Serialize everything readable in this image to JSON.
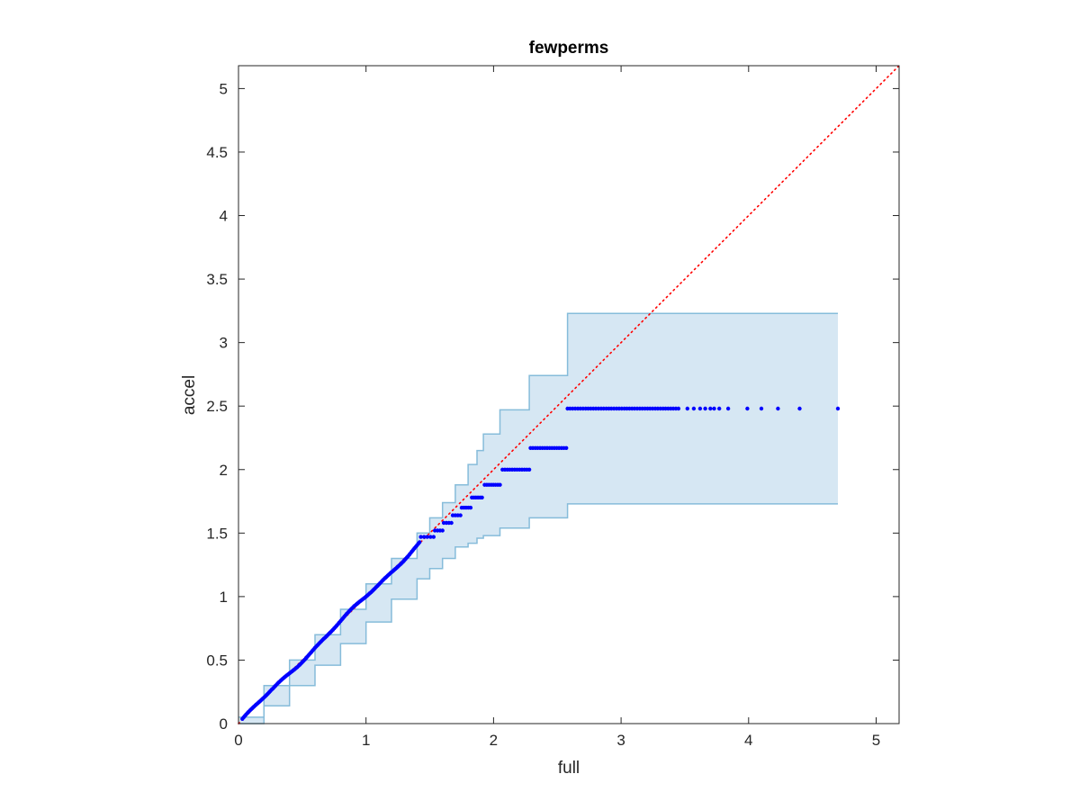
{
  "chart_data": {
    "type": "scatter",
    "title": "fewperms",
    "xlabel": "full",
    "ylabel": "accel",
    "xlim": [
      0,
      5.18
    ],
    "ylim": [
      0,
      5.18
    ],
    "xticks": [
      "0",
      "1",
      "2",
      "3",
      "4",
      "5"
    ],
    "yticks": [
      "0",
      "0.5",
      "1",
      "1.5",
      "2",
      "2.5",
      "3",
      "3.5",
      "4",
      "4.5",
      "5"
    ],
    "grid": false,
    "colors": {
      "points": "#0000ff",
      "band_fill": "#d6e7f3",
      "band_edge": "#86bcda",
      "reference": "#ff0000",
      "axes": "#262626"
    },
    "reference_line": {
      "style": "dotted",
      "from": [
        0,
        0
      ],
      "to": [
        5.18,
        5.18
      ]
    },
    "confidence_band": {
      "x": [
        0.0,
        0.2,
        0.4,
        0.6,
        0.8,
        1.0,
        1.2,
        1.4,
        1.5,
        1.6,
        1.7,
        1.8,
        1.87,
        1.92,
        2.05,
        2.28,
        2.58,
        4.7
      ],
      "upper": [
        0.05,
        0.3,
        0.5,
        0.7,
        0.9,
        1.1,
        1.3,
        1.5,
        1.62,
        1.74,
        1.88,
        2.04,
        2.15,
        2.28,
        2.47,
        2.74,
        3.23,
        3.23
      ],
      "lower": [
        0.0,
        0.14,
        0.3,
        0.46,
        0.63,
        0.8,
        0.98,
        1.14,
        1.22,
        1.3,
        1.39,
        1.42,
        1.46,
        1.48,
        1.54,
        1.62,
        1.73,
        1.73
      ]
    },
    "points": {
      "diagonal_range": [
        0.03,
        1.42
      ],
      "diagonal_count": 140,
      "steps": [
        {
          "y": 1.47,
          "x_from": 1.43,
          "x_to": 1.53,
          "count": 5
        },
        {
          "y": 1.52,
          "x_from": 1.54,
          "x_to": 1.6,
          "count": 4
        },
        {
          "y": 1.58,
          "x_from": 1.61,
          "x_to": 1.67,
          "count": 4
        },
        {
          "y": 1.64,
          "x_from": 1.68,
          "x_to": 1.74,
          "count": 4
        },
        {
          "y": 1.7,
          "x_from": 1.75,
          "x_to": 1.82,
          "count": 5
        },
        {
          "y": 1.78,
          "x_from": 1.83,
          "x_to": 1.91,
          "count": 6
        },
        {
          "y": 1.88,
          "x_from": 1.93,
          "x_to": 2.05,
          "count": 8
        },
        {
          "y": 2.0,
          "x_from": 2.07,
          "x_to": 2.28,
          "count": 12
        },
        {
          "y": 2.17,
          "x_from": 2.29,
          "x_to": 2.57,
          "count": 16
        },
        {
          "y": 2.48,
          "x_from": 2.58,
          "x_to": 3.45,
          "count": 44
        }
      ],
      "tail": [
        {
          "x": 3.52,
          "y": 2.48
        },
        {
          "x": 3.57,
          "y": 2.48
        },
        {
          "x": 3.62,
          "y": 2.48
        },
        {
          "x": 3.66,
          "y": 2.48
        },
        {
          "x": 3.7,
          "y": 2.48
        },
        {
          "x": 3.73,
          "y": 2.48
        },
        {
          "x": 3.77,
          "y": 2.48
        },
        {
          "x": 3.84,
          "y": 2.48
        },
        {
          "x": 3.99,
          "y": 2.48
        },
        {
          "x": 4.1,
          "y": 2.48
        },
        {
          "x": 4.23,
          "y": 2.48
        },
        {
          "x": 4.4,
          "y": 2.48
        },
        {
          "x": 4.7,
          "y": 2.48
        }
      ]
    }
  }
}
